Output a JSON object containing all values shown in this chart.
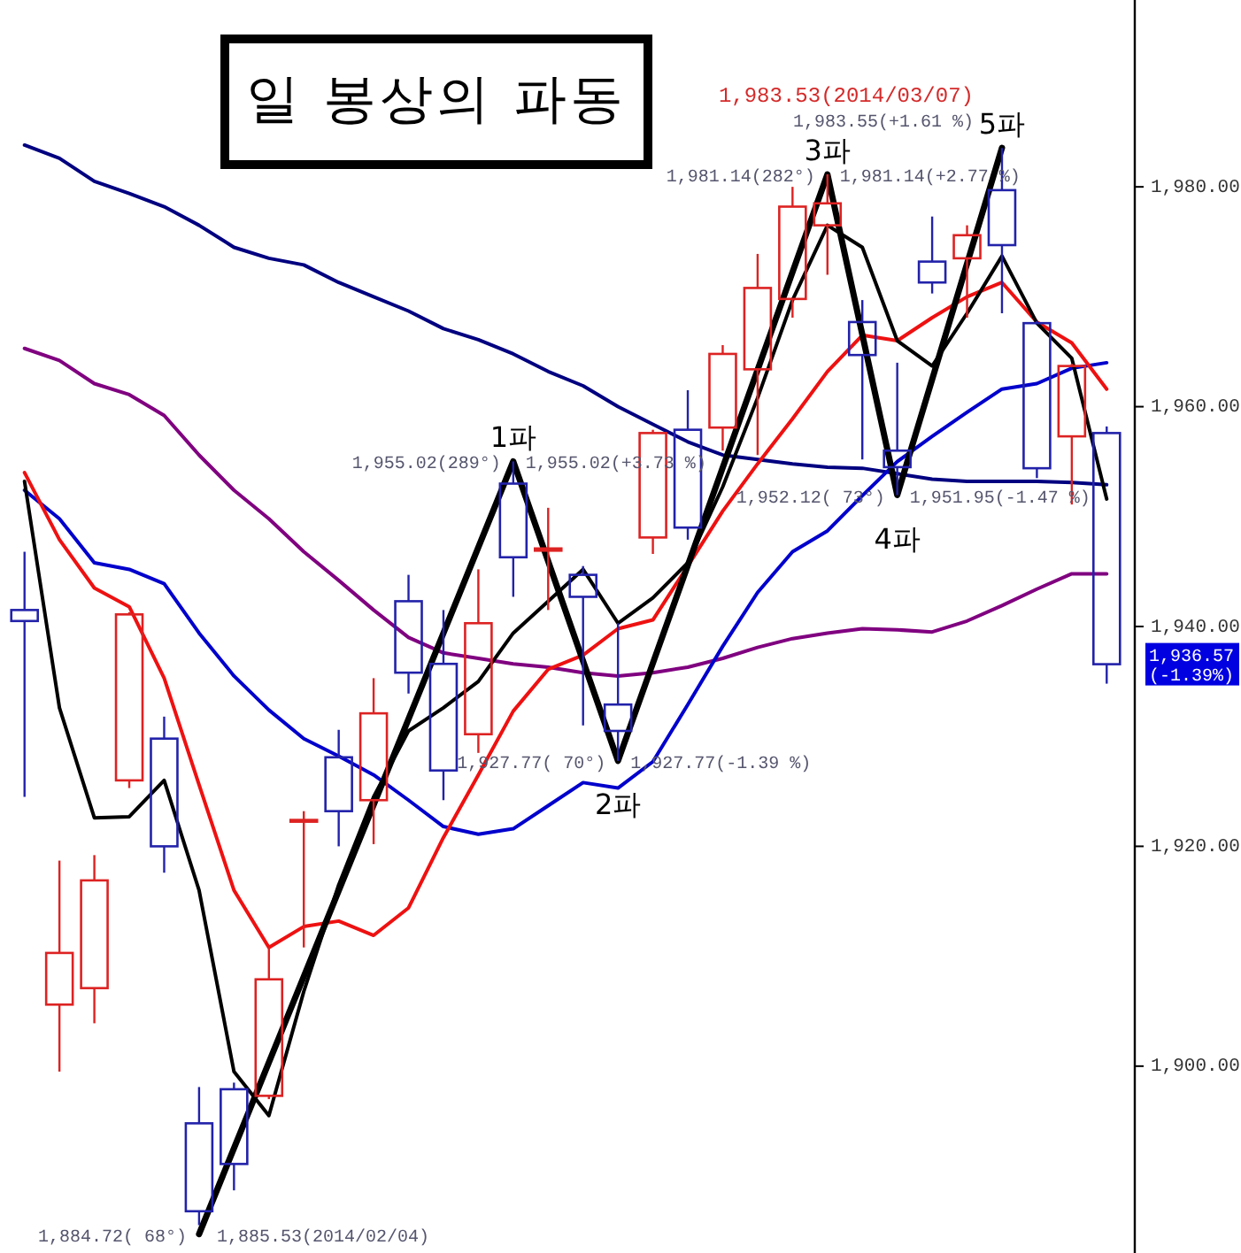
{
  "chart_data": {
    "type": "candlestick",
    "title": "일 봉상의 파동",
    "categories": [
      null,
      null,
      null,
      null,
      null,
      null,
      null,
      null,
      null,
      null,
      null,
      null,
      null,
      null,
      null,
      null,
      null,
      null,
      null,
      null,
      null,
      null,
      null,
      null,
      null,
      null,
      null,
      null,
      null,
      null,
      null,
      null
    ],
    "ohlc": [
      [
        1941.5,
        1946.8,
        1924.5,
        1940.5
      ],
      [
        1905.6,
        1918.7,
        1899.5,
        1910.3
      ],
      [
        1907.1,
        1919.2,
        1903.9,
        1916.9
      ],
      [
        1926.0,
        1941.3,
        1925.3,
        1941.1
      ],
      [
        1929.8,
        1931.8,
        1917.6,
        1920.0
      ],
      [
        1894.8,
        1898.1,
        1885.53,
        1886.8
      ],
      [
        1897.9,
        1898.5,
        1888.7,
        1891.1
      ],
      [
        1897.3,
        1910.8,
        1897.0,
        1907.9
      ],
      [
        1922.3,
        1923.2,
        1910.8,
        1922.4
      ],
      [
        1928.1,
        1930.6,
        1920.0,
        1923.2
      ],
      [
        1924.2,
        1935.3,
        1920.2,
        1932.1
      ],
      [
        1942.3,
        1944.7,
        1933.9,
        1935.8
      ],
      [
        1936.6,
        1941.5,
        1924.2,
        1926.9
      ],
      [
        1930.2,
        1945.2,
        1928.5,
        1940.3
      ],
      [
        1953.0,
        1955.02,
        1942.7,
        1946.3
      ],
      [
        1946.9,
        1950.8,
        1941.5,
        1947.1
      ],
      [
        1944.7,
        1945.5,
        1931.0,
        1942.7
      ],
      [
        1932.9,
        1940.3,
        1927.77,
        1930.5
      ],
      [
        1948.1,
        1957.9,
        1946.6,
        1957.6
      ],
      [
        1957.9,
        1961.5,
        1947.9,
        1949.0
      ],
      [
        1958.1,
        1965.6,
        1956.0,
        1964.8
      ],
      [
        1963.4,
        1973.9,
        1955.6,
        1970.8
      ],
      [
        1969.8,
        1980.0,
        1968.1,
        1978.2
      ],
      [
        1976.5,
        1981.14,
        1972.0,
        1978.5
      ],
      [
        1967.7,
        1969.7,
        1955.2,
        1964.7
      ],
      [
        1956.0,
        1964.0,
        1951.95,
        1954.5
      ],
      [
        1973.2,
        1977.3,
        1970.3,
        1971.3
      ],
      [
        1973.5,
        1976.5,
        1968.1,
        1975.6
      ],
      [
        1979.7,
        1983.53,
        1968.5,
        1974.7
      ],
      [
        1967.6,
        1967.8,
        1953.5,
        1954.4
      ],
      [
        1957.3,
        1963.9,
        1951.1,
        1963.7
      ],
      [
        1957.6,
        1958.2,
        1934.8,
        1936.57
      ]
    ],
    "colors": [
      "#2222aa",
      "#dd2222",
      "#dd2222",
      "#dd2222",
      "#2222aa",
      "#2222aa",
      "#2222aa",
      "#dd2222",
      "#dd2222",
      "#2222aa",
      "#dd2222",
      "#2222aa",
      "#2222aa",
      "#dd2222",
      "#2222aa",
      "#dd2222",
      "#2222aa",
      "#2222aa",
      "#dd2222",
      "#2222aa",
      "#dd2222",
      "#dd2222",
      "#dd2222",
      "#dd2222",
      "#2222aa",
      "#2222aa",
      "#2222aa",
      "#dd2222",
      "#2222aa",
      "#2222aa",
      "#dd2222",
      "#2222aa"
    ],
    "series": [
      {
        "type": "line",
        "color": "#000080",
        "values": [
          1983.8,
          1982.6,
          1980.5,
          1979.4,
          1978.2,
          1976.5,
          1974.5,
          1973.5,
          1972.9,
          1971.3,
          1970.0,
          1968.7,
          1967.1,
          1966.1,
          1964.8,
          1963.2,
          1961.9,
          1960.0,
          1958.4,
          1956.8,
          1955.6,
          1955.2,
          1954.8,
          1954.5,
          1954.4,
          1953.9,
          1953.4,
          1953.2,
          1953.2,
          1953.2,
          1953.1,
          1952.9
        ]
      },
      {
        "type": "line",
        "color": "#800080",
        "values": [
          1965.3,
          1964.2,
          1962.1,
          1961.1,
          1959.2,
          1955.6,
          1952.4,
          1949.8,
          1946.8,
          1944.2,
          1941.5,
          1939.0,
          1937.6,
          1937.1,
          1936.6,
          1936.3,
          1935.8,
          1935.5,
          1935.8,
          1936.3,
          1937.1,
          1938.1,
          1938.9,
          1939.4,
          1939.8,
          1939.7,
          1939.5,
          1940.5,
          1941.9,
          1943.4,
          1944.8,
          1944.8
        ]
      },
      {
        "type": "line",
        "color": "#0000cc",
        "values": [
          1952.4,
          1949.8,
          1945.8,
          1945.2,
          1943.9,
          1939.4,
          1935.5,
          1932.4,
          1929.8,
          1928.2,
          1926.5,
          1924.2,
          1921.8,
          1921.1,
          1921.6,
          1923.7,
          1925.8,
          1925.3,
          1927.7,
          1932.9,
          1938.2,
          1943.1,
          1946.8,
          1948.7,
          1951.9,
          1955.0,
          1957.3,
          1959.5,
          1961.6,
          1962.1,
          1963.5,
          1964.0
        ]
      },
      {
        "type": "line",
        "color": "#ee1111",
        "values": [
          1954.0,
          1947.9,
          1943.5,
          1941.8,
          1935.3,
          1925.6,
          1916.0,
          1910.8,
          1912.7,
          1913.2,
          1911.9,
          1914.4,
          1920.8,
          1926.5,
          1932.3,
          1936.1,
          1937.4,
          1939.8,
          1940.6,
          1945.5,
          1950.5,
          1954.8,
          1958.9,
          1963.2,
          1966.5,
          1966.0,
          1968.1,
          1970.0,
          1971.3,
          1967.7,
          1965.8,
          1961.6
        ]
      },
      {
        "type": "line",
        "color": "#000000",
        "values": [
          1953.2,
          1932.6,
          1922.6,
          1922.7,
          1926.0,
          1916.0,
          1899.5,
          1895.5,
          1906.8,
          1916.5,
          1924.5,
          1930.5,
          1932.6,
          1935.0,
          1939.4,
          1942.3,
          1945.2,
          1940.3,
          1942.6,
          1945.8,
          1952.7,
          1960.8,
          1969.7,
          1976.5,
          1974.5,
          1966.0,
          1963.7,
          1968.5,
          1973.7,
          1967.6,
          1964.4,
          1951.6
        ]
      },
      {
        "type": "line",
        "color": "#000000",
        "values": [
          null,
          null,
          null,
          null,
          null,
          1884.72,
          null,
          null,
          null,
          null,
          null,
          null,
          null,
          null,
          1955.02,
          null,
          null,
          1927.77,
          null,
          null,
          null,
          null,
          null,
          1981.14,
          null,
          1951.95,
          null,
          null,
          1983.55,
          null,
          null,
          null
        ]
      }
    ],
    "ylim": [
      1883,
      1997
    ],
    "yticks": [
      {
        "value": 1900,
        "label": "1,900.00"
      },
      {
        "value": 1920,
        "label": "1,920.00"
      },
      {
        "value": 1940,
        "label": "1,940.00"
      },
      {
        "value": 1960,
        "label": "1,960.00"
      },
      {
        "value": 1980,
        "label": "1,980.00"
      }
    ],
    "tick_labels": "y",
    "annotations": [
      "1,884.72( 68°)",
      "1,885.53(2014/02/04)",
      {
        "text": "1파",
        "y": 1955.02
      },
      "1,955.02(289°)",
      "1,955.02(+3.73 %)",
      {
        "text": "2파",
        "y": 1927.77
      },
      "1,927.77( 70°)",
      "1,927.77(-1.39 %)",
      {
        "text": "3파",
        "y": 1981.14
      },
      "1,981.14(282°)",
      "1,981.14(+2.77 %)",
      {
        "text": "4파",
        "y": 1951.95
      },
      "1,952.12( 73°)",
      "1,951.95(-1.47 %)",
      {
        "text": "5파",
        "y": 1983.55
      },
      "1,983.55(+1.61 %)",
      "1,983.53(2014/03/07)",
      "1,936.57\n(-1.39%)"
    ]
  }
}
